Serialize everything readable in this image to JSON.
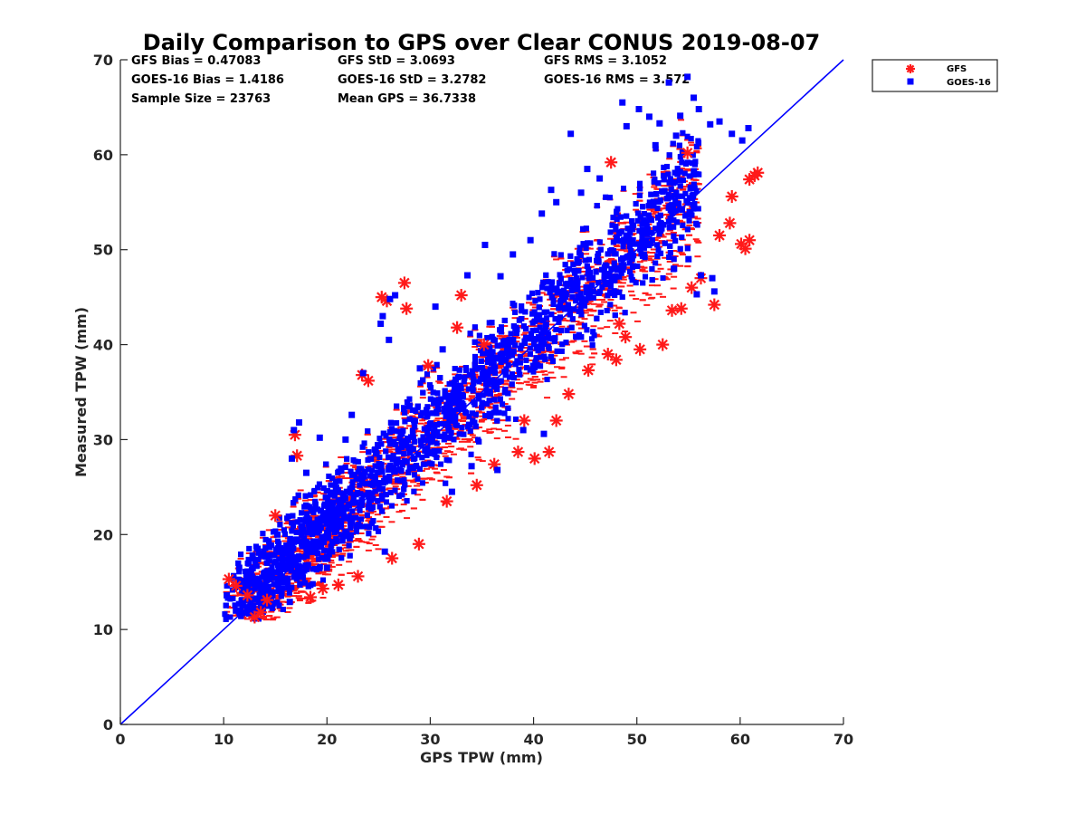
{
  "colors": {
    "gfs": "#ff1a1a",
    "goes16": "#0000ff",
    "one_to_one": "#0000ff",
    "axis": "#262626"
  },
  "chart_data": {
    "type": "scatter",
    "title": "Daily Comparison to GPS over Clear CONUS 2019-08-07",
    "xlabel": "GPS TPW (mm)",
    "ylabel": "Measured TPW (mm)",
    "xlim": [
      0,
      70
    ],
    "ylim": [
      0,
      70
    ],
    "xticks": [
      "0",
      "10",
      "20",
      "30",
      "40",
      "50",
      "60",
      "70"
    ],
    "yticks": [
      "0",
      "10",
      "20",
      "30",
      "40",
      "50",
      "60",
      "70"
    ],
    "grid": false,
    "legend_position": "outside top-right",
    "stats": {
      "gfs_bias": "GFS Bias = 0.47083",
      "goes_bias": "GOES-16 Bias = 1.4186",
      "sample_size": "Sample Size = 23763",
      "gfs_std": "GFS StD = 3.0693",
      "goes_std": "GOES-16 StD = 3.2782",
      "mean_gps": "Mean GPS = 36.7338",
      "gfs_rms": "GFS RMS = 3.1052",
      "goes_rms": "GOES-16 RMS = 3.572"
    },
    "reference_line": {
      "name": "1:1 line",
      "x": [
        0,
        70
      ],
      "y": [
        0,
        70
      ]
    },
    "series": [
      {
        "name": "GFS",
        "marker": "asterisk",
        "points": [
          [
            10.5,
            15.3
          ],
          [
            11.2,
            14.6
          ],
          [
            12.3,
            13.6
          ],
          [
            13.0,
            11.3
          ],
          [
            13.6,
            11.8
          ],
          [
            14.2,
            13.1
          ],
          [
            15.0,
            22.0
          ],
          [
            16.9,
            30.5
          ],
          [
            17.1,
            28.3
          ],
          [
            18.4,
            13.4
          ],
          [
            19.6,
            14.3
          ],
          [
            21.1,
            14.7
          ],
          [
            23.0,
            15.6
          ],
          [
            23.4,
            36.8
          ],
          [
            24.0,
            36.2
          ],
          [
            25.3,
            45.0
          ],
          [
            25.8,
            44.6
          ],
          [
            26.3,
            17.5
          ],
          [
            27.5,
            46.5
          ],
          [
            27.7,
            43.8
          ],
          [
            28.9,
            19.0
          ],
          [
            29.8,
            37.8
          ],
          [
            31.6,
            23.5
          ],
          [
            32.6,
            41.8
          ],
          [
            33.0,
            45.2
          ],
          [
            34.5,
            25.2
          ],
          [
            35.2,
            40.0
          ],
          [
            36.2,
            27.4
          ],
          [
            38.5,
            28.7
          ],
          [
            39.1,
            32.0
          ],
          [
            40.1,
            28.0
          ],
          [
            41.5,
            28.7
          ],
          [
            42.2,
            32.0
          ],
          [
            43.4,
            34.8
          ],
          [
            45.3,
            37.3
          ],
          [
            47.2,
            39.0
          ],
          [
            48.0,
            38.4
          ],
          [
            48.3,
            42.2
          ],
          [
            48.9,
            40.8
          ],
          [
            50.3,
            39.5
          ],
          [
            52.5,
            40.0
          ],
          [
            53.4,
            43.6
          ],
          [
            54.3,
            43.8
          ],
          [
            54.9,
            60.2
          ],
          [
            55.3,
            46.0
          ],
          [
            56.2,
            47.0
          ],
          [
            57.5,
            44.2
          ],
          [
            58.0,
            51.5
          ],
          [
            59.0,
            52.8
          ],
          [
            60.1,
            50.6
          ],
          [
            60.5,
            50.1
          ],
          [
            60.9,
            51.0
          ],
          [
            61.4,
            57.8
          ],
          [
            61.7,
            58.1
          ],
          [
            60.9,
            57.4
          ],
          [
            59.2,
            55.6
          ],
          [
            47.5,
            59.2
          ]
        ]
      },
      {
        "name": "GOES-16",
        "marker": "square",
        "points": [
          [
            10.3,
            13.6
          ],
          [
            11.5,
            16.5
          ],
          [
            12.8,
            17.8
          ],
          [
            14.0,
            16.0
          ],
          [
            15.2,
            20.0
          ],
          [
            16.6,
            28.0
          ],
          [
            17.3,
            31.8
          ],
          [
            16.8,
            31.0
          ],
          [
            18.0,
            26.5
          ],
          [
            19.3,
            30.2
          ],
          [
            21.8,
            30.0
          ],
          [
            22.4,
            32.6
          ],
          [
            23.5,
            37.0
          ],
          [
            25.2,
            42.2
          ],
          [
            25.4,
            43.0
          ],
          [
            26.1,
            44.8
          ],
          [
            26.6,
            45.2
          ],
          [
            26.0,
            40.5
          ],
          [
            29.0,
            37.5
          ],
          [
            30.5,
            44.0
          ],
          [
            31.2,
            39.5
          ],
          [
            33.6,
            47.3
          ],
          [
            35.3,
            50.5
          ],
          [
            36.8,
            47.2
          ],
          [
            38.0,
            49.5
          ],
          [
            39.7,
            51.0
          ],
          [
            40.8,
            53.8
          ],
          [
            42.2,
            55.0
          ],
          [
            41.7,
            56.3
          ],
          [
            43.6,
            62.2
          ],
          [
            44.6,
            56.0
          ],
          [
            45.2,
            58.5
          ],
          [
            46.4,
            57.5
          ],
          [
            48.6,
            65.5
          ],
          [
            49.0,
            63.0
          ],
          [
            50.2,
            64.8
          ],
          [
            51.2,
            64.0
          ],
          [
            51.8,
            61.0
          ],
          [
            52.2,
            63.3
          ],
          [
            53.1,
            67.6
          ],
          [
            53.8,
            62.0
          ],
          [
            54.2,
            64.1
          ],
          [
            54.9,
            68.2
          ],
          [
            55.5,
            66.0
          ],
          [
            56.0,
            64.8
          ],
          [
            57.1,
            63.2
          ],
          [
            58.0,
            63.5
          ],
          [
            59.2,
            62.2
          ],
          [
            60.2,
            61.5
          ],
          [
            60.8,
            62.8
          ],
          [
            53.6,
            48.0
          ],
          [
            55.0,
            49.0
          ],
          [
            56.2,
            47.3
          ],
          [
            57.3,
            47.0
          ],
          [
            55.8,
            45.3
          ],
          [
            57.5,
            45.6
          ],
          [
            36.5,
            26.8
          ],
          [
            39.0,
            31.0
          ],
          [
            41.0,
            30.6
          ],
          [
            34.0,
            27.2
          ],
          [
            32.1,
            24.5
          ],
          [
            25.6,
            18.2
          ],
          [
            22.2,
            19.6
          ],
          [
            20.0,
            16.5
          ],
          [
            16.4,
            12.9
          ],
          [
            13.8,
            14.5
          ]
        ]
      }
    ]
  }
}
